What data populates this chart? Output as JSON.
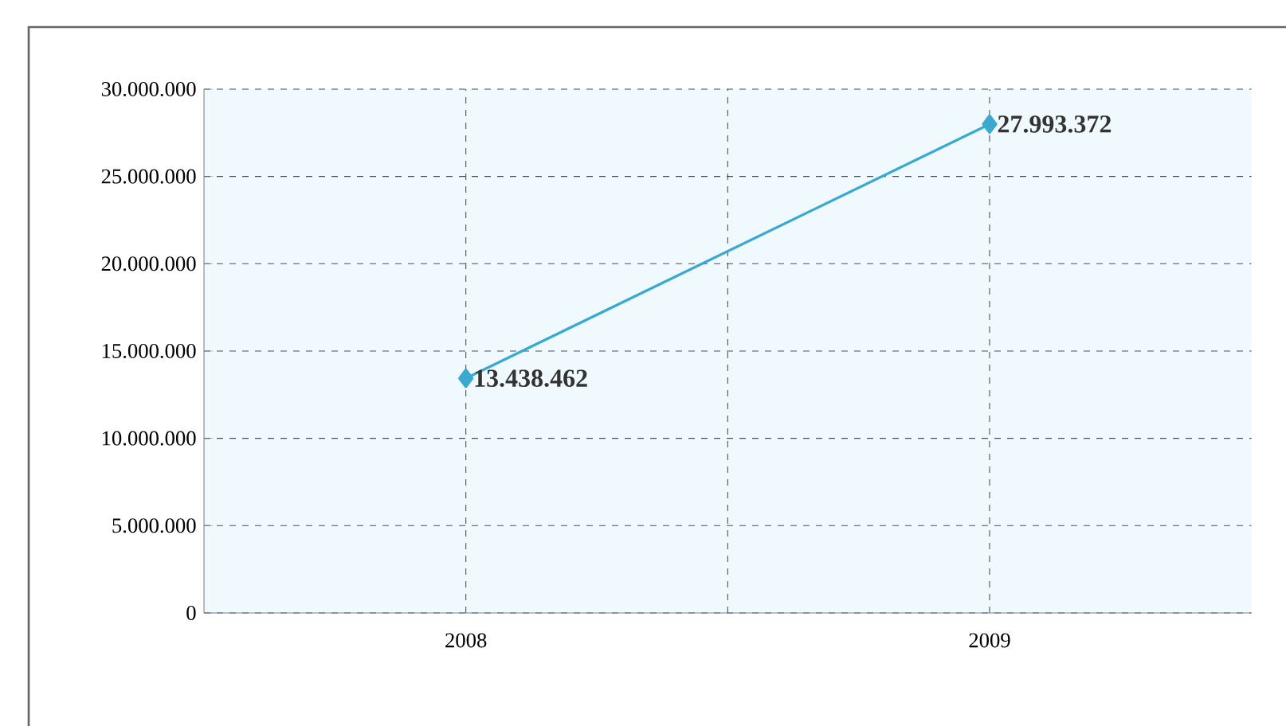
{
  "chart_data": {
    "type": "line",
    "categories": [
      "2008",
      "2009"
    ],
    "series": [
      {
        "color": "#3aa9d0",
        "values": [
          13438462,
          27993372
        ],
        "value_labels": [
          "13.438.462",
          "27.993.372"
        ]
      }
    ],
    "ylim": [
      0,
      30000000
    ],
    "yticks": [
      {
        "value": 0,
        "label": "0"
      },
      {
        "value": 5000000,
        "label": "5.000.000"
      },
      {
        "value": 10000000,
        "label": "10.000.000"
      },
      {
        "value": 15000000,
        "label": "15.000.000"
      },
      {
        "value": 20000000,
        "label": "20.000.000"
      },
      {
        "value": 25000000,
        "label": "25.000.000"
      },
      {
        "value": 30000000,
        "label": "30.000.000"
      }
    ],
    "grid": true,
    "marker": "diamond",
    "line_style": "solid",
    "legend": false
  }
}
